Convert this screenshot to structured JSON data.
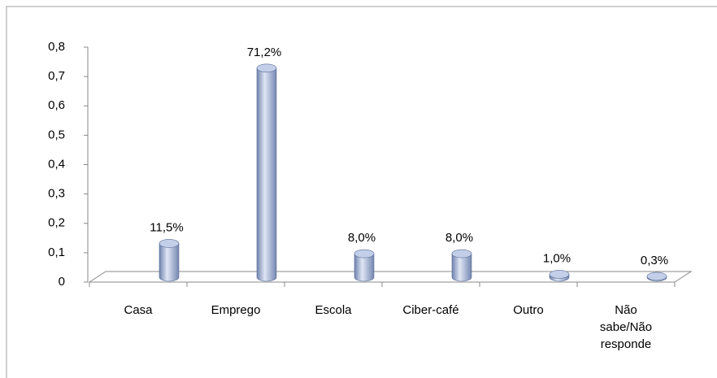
{
  "chart_data": {
    "type": "bar",
    "categories": [
      "Casa",
      "Emprego",
      "Escola",
      "Ciber-café",
      "Outro",
      "Não sabe/Não responde"
    ],
    "values": [
      0.115,
      0.712,
      0.08,
      0.08,
      0.01,
      0.003
    ],
    "value_labels": [
      "11,5%",
      "71,2%",
      "8,0%",
      "8,0%",
      "1,0%",
      "0,3%"
    ],
    "color": "#a4b4d6",
    "ylim": [
      0,
      0.8
    ],
    "yticks": [
      0,
      {
        "value": 0.1,
        "label": "0,1"
      },
      {
        "value": 0.2,
        "label": "0,2"
      },
      {
        "value": 0.3,
        "label": "0,3"
      },
      {
        "value": 0.4,
        "label": "0,4"
      },
      {
        "value": 0.5,
        "label": "0,5"
      },
      {
        "value": 0.6,
        "label": "0,6"
      },
      {
        "value": 0.7,
        "label": "0,7"
      },
      {
        "value": 0.8,
        "label": "0,8"
      }
    ],
    "grid": false
  }
}
